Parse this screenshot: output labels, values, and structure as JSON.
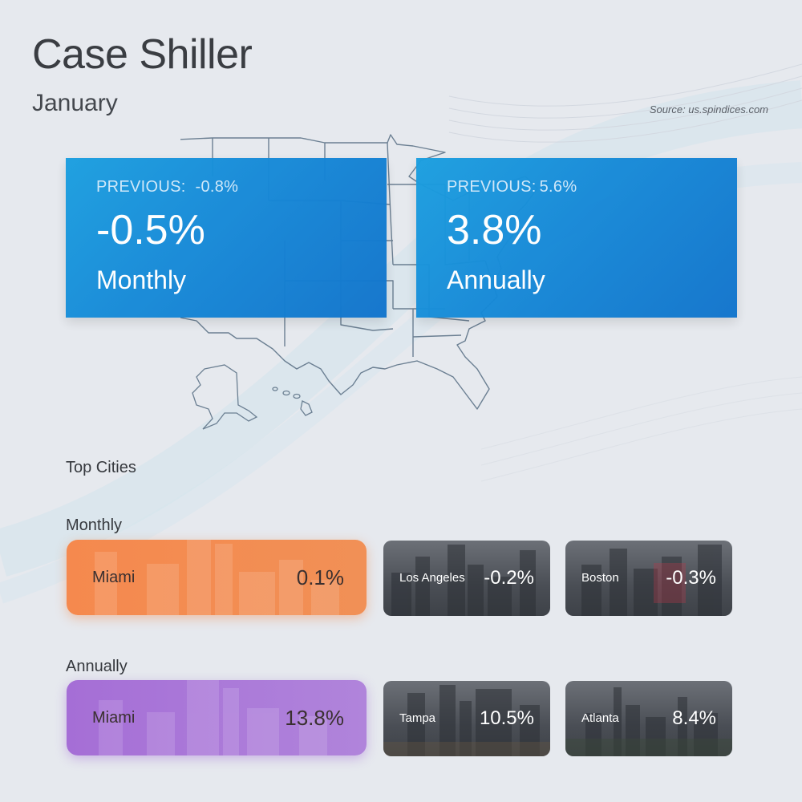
{
  "header": {
    "title": "Case Shiller",
    "subtitle": "January",
    "source": "Source: us.spindices.com"
  },
  "colors": {
    "card_blue": "#1585d6",
    "highlight_monthly": "#f5894e",
    "highlight_annual": "#a56ed6",
    "background": "#e6e9ee"
  },
  "stats": {
    "monthly": {
      "previous_label": "PREVIOUS:",
      "previous_value": "-0.8%",
      "value": "-0.5%",
      "period": "Monthly"
    },
    "annual": {
      "previous_label": "PREVIOUS:",
      "previous_value": "5.6%",
      "value": "3.8%",
      "period": "Annually"
    }
  },
  "top_cities": {
    "heading": "Top Cities",
    "monthly": {
      "label": "Monthly",
      "cities": [
        {
          "name": "Miami",
          "value": "0.1%"
        },
        {
          "name": "Los Angeles",
          "value": "-0.2%"
        },
        {
          "name": "Boston",
          "value": "-0.3%"
        }
      ]
    },
    "annually": {
      "label": "Annually",
      "cities": [
        {
          "name": "Miami",
          "value": "13.8%"
        },
        {
          "name": "Tampa",
          "value": "10.5%"
        },
        {
          "name": "Atlanta",
          "value": "8.4%"
        }
      ]
    }
  },
  "icons": [
    "us-map-icon",
    "skyline-image"
  ]
}
